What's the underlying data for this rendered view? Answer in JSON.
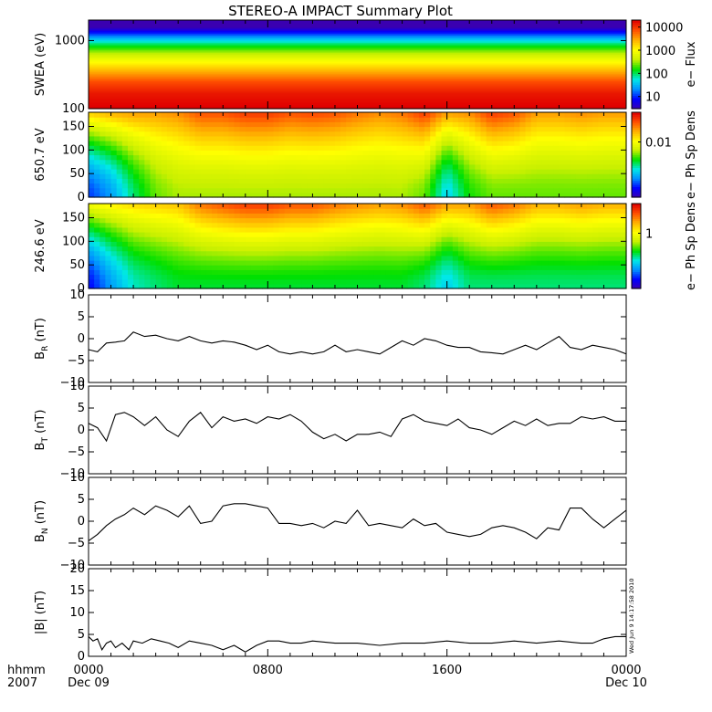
{
  "title": "STEREO-A IMPACT Summary Plot",
  "timestamp": "Wed Jun 9 14:17:58 2010",
  "x_axis": {
    "corner_top": "hhmm",
    "corner_bottom": "2007",
    "ticks": [
      {
        "t": 0,
        "label": "0000",
        "sub": "Dec 09"
      },
      {
        "t": 8,
        "label": "0800",
        "sub": ""
      },
      {
        "t": 16,
        "label": "1600",
        "sub": ""
      },
      {
        "t": 24,
        "label": "0000",
        "sub": "Dec 10"
      }
    ],
    "range_hours": [
      0,
      24
    ]
  },
  "colors": {
    "colormap": [
      "#3a00b0",
      "#0000ff",
      "#0090ff",
      "#00e8e8",
      "#00e000",
      "#c8f000",
      "#ffff00",
      "#ffb000",
      "#ff5000",
      "#e00000"
    ],
    "line": "#000000"
  },
  "chart_data": [
    {
      "type": "heatmap",
      "panel": "swea",
      "ylabel": "SWEA (eV)",
      "y_scale": "log",
      "ylim": [
        100,
        2000
      ],
      "yticks": [
        {
          "v": 100,
          "label": "100"
        },
        {
          "v": 1000,
          "label": "1000"
        }
      ],
      "colorbar": {
        "label": "e− Flux",
        "scale": "log",
        "range": [
          3,
          20000
        ],
        "ticks": [
          {
            "v": 10,
            "label": "10"
          },
          {
            "v": 100,
            "label": "100"
          },
          {
            "v": 1000,
            "label": "1000"
          },
          {
            "v": 10000,
            "label": "10000"
          }
        ]
      },
      "rows": [
        {
          "y": 1900,
          "v": 1
        },
        {
          "y": 1600,
          "v": 3
        },
        {
          "y": 1300,
          "v": 10
        },
        {
          "y": 1100,
          "v": 30
        },
        {
          "y": 900,
          "v": 100
        },
        {
          "y": 700,
          "v": 300
        },
        {
          "y": 500,
          "v": 1000
        },
        {
          "y": 350,
          "v": 3000
        },
        {
          "y": 250,
          "v": 8000
        },
        {
          "y": 170,
          "v": 15000
        },
        {
          "y": 110,
          "v": 20000
        }
      ]
    },
    {
      "type": "heatmap",
      "panel": "pad650",
      "ylabel": "650.7 eV",
      "ylim": [
        0,
        180
      ],
      "yticks": [
        {
          "v": 0,
          "label": "0"
        },
        {
          "v": 50,
          "label": "50"
        },
        {
          "v": 100,
          "label": "100"
        },
        {
          "v": 150,
          "label": "150"
        }
      ],
      "colorbar": {
        "label": "e− Ph Sp Dens",
        "scale": "log",
        "range": [
          0.0005,
          0.05
        ],
        "ticks": [
          {
            "v": 0.01,
            "label": "0.01"
          }
        ]
      },
      "columns": [
        {
          "t": 0.0,
          "low": 0.001,
          "high": 0.015
        },
        {
          "t": 1.0,
          "low": 0.0015,
          "high": 0.018
        },
        {
          "t": 2.0,
          "low": 0.003,
          "high": 0.02
        },
        {
          "t": 3.0,
          "low": 0.005,
          "high": 0.02
        },
        {
          "t": 4.0,
          "low": 0.006,
          "high": 0.022
        },
        {
          "t": 5.0,
          "low": 0.006,
          "high": 0.03
        },
        {
          "t": 6.0,
          "low": 0.006,
          "high": 0.03
        },
        {
          "t": 7.0,
          "low": 0.006,
          "high": 0.035
        },
        {
          "t": 8.0,
          "low": 0.006,
          "high": 0.035
        },
        {
          "t": 9.0,
          "low": 0.006,
          "high": 0.03
        },
        {
          "t": 10.0,
          "low": 0.006,
          "high": 0.032
        },
        {
          "t": 11.0,
          "low": 0.006,
          "high": 0.03
        },
        {
          "t": 12.0,
          "low": 0.006,
          "high": 0.025
        },
        {
          "t": 13.0,
          "low": 0.006,
          "high": 0.022
        },
        {
          "t": 14.0,
          "low": 0.006,
          "high": 0.025
        },
        {
          "t": 15.0,
          "low": 0.005,
          "high": 0.035
        },
        {
          "t": 16.0,
          "low": 0.002,
          "high": 0.02
        },
        {
          "t": 17.0,
          "low": 0.004,
          "high": 0.022
        },
        {
          "t": 18.0,
          "low": 0.005,
          "high": 0.035
        },
        {
          "t": 19.0,
          "low": 0.005,
          "high": 0.03
        },
        {
          "t": 20.0,
          "low": 0.005,
          "high": 0.02
        },
        {
          "t": 21.0,
          "low": 0.005,
          "high": 0.02
        },
        {
          "t": 22.0,
          "low": 0.005,
          "high": 0.022
        },
        {
          "t": 23.0,
          "low": 0.005,
          "high": 0.02
        },
        {
          "t": 24.0,
          "low": 0.005,
          "high": 0.02
        }
      ]
    },
    {
      "type": "heatmap",
      "panel": "pad246",
      "ylabel": "246.6 eV",
      "ylim": [
        0,
        180
      ],
      "yticks": [
        {
          "v": 0,
          "label": "0"
        },
        {
          "v": 50,
          "label": "50"
        },
        {
          "v": 100,
          "label": "100"
        },
        {
          "v": 150,
          "label": "150"
        }
      ],
      "colorbar": {
        "label": "e− Ph Sp Dens",
        "scale": "log",
        "range": [
          0.05,
          5
        ],
        "ticks": [
          {
            "v": 1,
            "label": "1"
          }
        ]
      },
      "columns": [
        {
          "t": 0.0,
          "low": 0.08,
          "high": 1.0
        },
        {
          "t": 1.0,
          "low": 0.15,
          "high": 1.2
        },
        {
          "t": 2.0,
          "low": 0.25,
          "high": 1.4
        },
        {
          "t": 3.0,
          "low": 0.3,
          "high": 1.5
        },
        {
          "t": 4.0,
          "low": 0.35,
          "high": 1.6
        },
        {
          "t": 5.0,
          "low": 0.35,
          "high": 2.5
        },
        {
          "t": 6.0,
          "low": 0.35,
          "high": 3.0
        },
        {
          "t": 7.0,
          "low": 0.35,
          "high": 3.5
        },
        {
          "t": 8.0,
          "low": 0.35,
          "high": 3.5
        },
        {
          "t": 9.0,
          "low": 0.35,
          "high": 3.0
        },
        {
          "t": 10.0,
          "low": 0.35,
          "high": 3.0
        },
        {
          "t": 11.0,
          "low": 0.35,
          "high": 2.5
        },
        {
          "t": 12.0,
          "low": 0.35,
          "high": 2.2
        },
        {
          "t": 13.0,
          "low": 0.35,
          "high": 2.0
        },
        {
          "t": 14.0,
          "low": 0.35,
          "high": 2.2
        },
        {
          "t": 15.0,
          "low": 0.3,
          "high": 3.0
        },
        {
          "t": 16.0,
          "low": 0.2,
          "high": 2.0
        },
        {
          "t": 17.0,
          "low": 0.3,
          "high": 2.0
        },
        {
          "t": 18.0,
          "low": 0.3,
          "high": 3.0
        },
        {
          "t": 19.0,
          "low": 0.3,
          "high": 2.5
        },
        {
          "t": 20.0,
          "low": 0.3,
          "high": 1.8
        },
        {
          "t": 21.0,
          "low": 0.3,
          "high": 1.8
        },
        {
          "t": 22.0,
          "low": 0.3,
          "high": 2.0
        },
        {
          "t": 23.0,
          "low": 0.3,
          "high": 1.8
        },
        {
          "t": 24.0,
          "low": 0.3,
          "high": 1.8
        }
      ]
    },
    {
      "type": "line",
      "panel": "br",
      "ylabel": "B",
      "ylabel_sub": "R",
      "ylabel_unit": " (nT)",
      "ylim": [
        -10,
        10
      ],
      "yticks": [
        {
          "v": -10,
          "label": "−10"
        },
        {
          "v": -5,
          "label": "−5"
        },
        {
          "v": 0,
          "label": "0"
        },
        {
          "v": 5,
          "label": "5"
        },
        {
          "v": 10,
          "label": "10"
        }
      ],
      "x": [
        0,
        0.4,
        0.8,
        1.2,
        1.6,
        2.0,
        2.5,
        3.0,
        3.5,
        4.0,
        4.5,
        5.0,
        5.5,
        6.0,
        6.5,
        7.0,
        7.5,
        8.0,
        8.5,
        9.0,
        9.5,
        10.0,
        10.5,
        11.0,
        11.5,
        12.0,
        12.5,
        13.0,
        13.5,
        14.0,
        14.5,
        15.0,
        15.5,
        16.0,
        16.5,
        17.0,
        17.5,
        18.0,
        18.5,
        19.0,
        19.5,
        20.0,
        20.5,
        21.0,
        21.5,
        22.0,
        22.5,
        23.0,
        23.5,
        24.0
      ],
      "y": [
        -2.5,
        -3.0,
        -1.0,
        -0.8,
        -0.5,
        1.5,
        0.5,
        0.8,
        0.0,
        -0.5,
        0.5,
        -0.5,
        -1.0,
        -0.5,
        -0.8,
        -1.5,
        -2.5,
        -1.5,
        -3.0,
        -3.5,
        -3.0,
        -3.5,
        -3.0,
        -1.5,
        -3.0,
        -2.5,
        -3.0,
        -3.5,
        -2.0,
        -0.5,
        -1.5,
        0.0,
        -0.5,
        -1.5,
        -2.0,
        -2.0,
        -3.0,
        -3.2,
        -3.5,
        -2.5,
        -1.5,
        -2.5,
        -1.0,
        0.5,
        -2.0,
        -2.5,
        -1.5,
        -2.0,
        -2.5,
        -3.5
      ]
    },
    {
      "type": "line",
      "panel": "bt",
      "ylabel": "B",
      "ylabel_sub": "T",
      "ylabel_unit": " (nT)",
      "ylim": [
        -10,
        10
      ],
      "yticks": [
        {
          "v": -10,
          "label": "−10"
        },
        {
          "v": -5,
          "label": "−5"
        },
        {
          "v": 0,
          "label": "0"
        },
        {
          "v": 5,
          "label": "5"
        },
        {
          "v": 10,
          "label": "10"
        }
      ],
      "x": [
        0,
        0.4,
        0.8,
        1.2,
        1.6,
        2.0,
        2.5,
        3.0,
        3.5,
        4.0,
        4.5,
        5.0,
        5.5,
        6.0,
        6.5,
        7.0,
        7.5,
        8.0,
        8.5,
        9.0,
        9.5,
        10.0,
        10.5,
        11.0,
        11.5,
        12.0,
        12.5,
        13.0,
        13.5,
        14.0,
        14.5,
        15.0,
        15.5,
        16.0,
        16.5,
        17.0,
        17.5,
        18.0,
        18.5,
        19.0,
        19.5,
        20.0,
        20.5,
        21.0,
        21.5,
        22.0,
        22.5,
        23.0,
        23.5,
        24.0
      ],
      "y": [
        1.5,
        0.5,
        -2.5,
        3.5,
        4.0,
        3.0,
        1.0,
        3.0,
        0.0,
        -1.5,
        2.0,
        4.0,
        0.5,
        3.0,
        2.0,
        2.5,
        1.5,
        3.0,
        2.5,
        3.5,
        2.0,
        -0.5,
        -2.0,
        -1.0,
        -2.5,
        -1.0,
        -1.0,
        -0.5,
        -1.5,
        2.5,
        3.5,
        2.0,
        1.5,
        1.0,
        2.5,
        0.5,
        0.0,
        -1.0,
        0.5,
        2.0,
        1.0,
        2.5,
        1.0,
        1.5,
        1.5,
        3.0,
        2.5,
        3.0,
        2.0,
        2.0
      ]
    },
    {
      "type": "line",
      "panel": "bn",
      "ylabel": "B",
      "ylabel_sub": "N",
      "ylabel_unit": " (nT)",
      "ylim": [
        -10,
        10
      ],
      "yticks": [
        {
          "v": -10,
          "label": "−10"
        },
        {
          "v": -5,
          "label": "−5"
        },
        {
          "v": 0,
          "label": "0"
        },
        {
          "v": 5,
          "label": "5"
        },
        {
          "v": 10,
          "label": "10"
        }
      ],
      "x": [
        0,
        0.4,
        0.8,
        1.2,
        1.6,
        2.0,
        2.5,
        3.0,
        3.5,
        4.0,
        4.5,
        5.0,
        5.5,
        6.0,
        6.5,
        7.0,
        7.5,
        8.0,
        8.5,
        9.0,
        9.5,
        10.0,
        10.5,
        11.0,
        11.5,
        12.0,
        12.5,
        13.0,
        13.5,
        14.0,
        14.5,
        15.0,
        15.5,
        16.0,
        16.5,
        17.0,
        17.5,
        18.0,
        18.5,
        19.0,
        19.5,
        20.0,
        20.5,
        21.0,
        21.5,
        22.0,
        22.5,
        23.0,
        23.5,
        24.0
      ],
      "y": [
        -4.5,
        -3.0,
        -1.0,
        0.5,
        1.5,
        3.0,
        1.5,
        3.5,
        2.5,
        1.0,
        3.5,
        -0.5,
        0.0,
        3.5,
        4.0,
        4.0,
        3.5,
        3.0,
        -0.5,
        -0.5,
        -1.0,
        -0.5,
        -1.5,
        0.0,
        -0.5,
        2.5,
        -1.0,
        -0.5,
        -1.0,
        -1.5,
        0.5,
        -1.0,
        -0.5,
        -2.5,
        -3.0,
        -3.5,
        -3.0,
        -1.5,
        -1.0,
        -1.5,
        -2.5,
        -4.0,
        -1.5,
        -2.0,
        3.0,
        3.0,
        0.5,
        -1.5,
        0.5,
        2.5
      ]
    },
    {
      "type": "line",
      "panel": "bmag",
      "ylabel": "|B| (nT)",
      "ylim": [
        0,
        20
      ],
      "yticks": [
        {
          "v": 0,
          "label": "0"
        },
        {
          "v": 5,
          "label": "5"
        },
        {
          "v": 10,
          "label": "10"
        },
        {
          "v": 15,
          "label": "15"
        },
        {
          "v": 20,
          "label": "20"
        }
      ],
      "x": [
        0,
        0.2,
        0.4,
        0.6,
        0.8,
        1.0,
        1.2,
        1.5,
        1.8,
        2.0,
        2.4,
        2.8,
        3.2,
        3.6,
        4.0,
        4.5,
        5.0,
        5.5,
        6.0,
        6.5,
        7.0,
        7.5,
        8.0,
        8.5,
        9.0,
        9.5,
        10.0,
        11.0,
        12.0,
        13.0,
        14.0,
        15.0,
        16.0,
        17.0,
        18.0,
        19.0,
        20.0,
        21.0,
        22.0,
        22.5,
        23.0,
        23.5,
        24.0
      ],
      "y": [
        4.5,
        3.5,
        4.0,
        1.5,
        3.0,
        3.5,
        2.0,
        3.0,
        1.5,
        3.5,
        3.0,
        4.0,
        3.5,
        3.0,
        2.0,
        3.5,
        3.0,
        2.5,
        1.5,
        2.5,
        1.0,
        2.5,
        3.5,
        3.5,
        3.0,
        3.0,
        3.5,
        3.0,
        3.0,
        2.5,
        3.0,
        3.0,
        3.5,
        3.0,
        3.0,
        3.5,
        3.0,
        3.5,
        3.0,
        3.0,
        4.0,
        4.5,
        4.5
      ]
    }
  ]
}
